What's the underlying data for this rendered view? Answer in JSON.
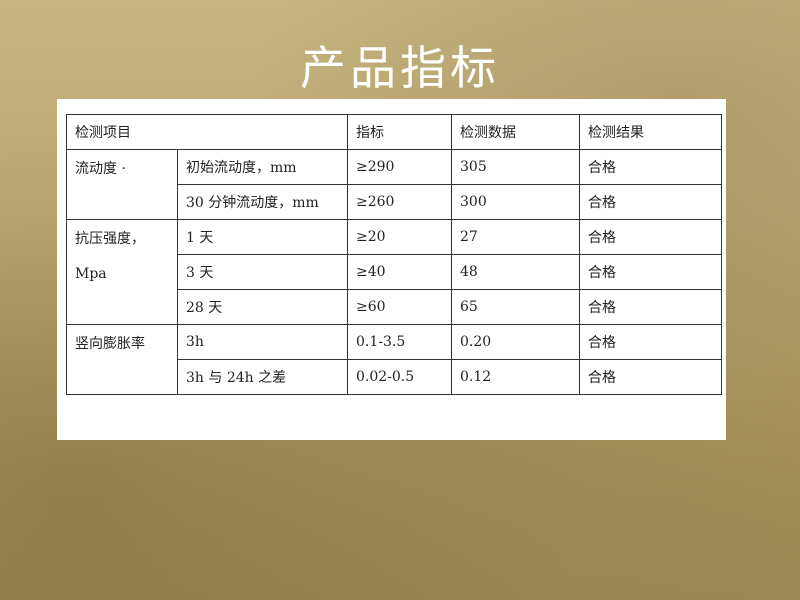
{
  "title": "产品指标",
  "table": {
    "headers": [
      "检测项目",
      "指标",
      "检测数据",
      "检测结果"
    ],
    "groups": [
      {
        "label": "流动度 ·",
        "rows": [
          {
            "item": "初始流动度，mm",
            "spec": "≥290",
            "value": "305",
            "result": "合格"
          },
          {
            "item": "30 分钟流动度，mm",
            "spec": "≥260",
            "value": "300",
            "result": "合格"
          }
        ]
      },
      {
        "label": "抗压强度，",
        "label2": "Mpa",
        "rows": [
          {
            "item": "1 天",
            "spec": "≥20",
            "value": "27",
            "result": "合格"
          },
          {
            "item": "3 天",
            "spec": "≥40",
            "value": "48",
            "result": "合格"
          },
          {
            "item": "28 天",
            "spec": "≥60",
            "value": "65",
            "result": "合格"
          }
        ]
      },
      {
        "label": "竖向膨胀率",
        "rows": [
          {
            "item": "3h",
            "spec": "0.1-3.5",
            "value": "0.20",
            "result": "合格"
          },
          {
            "item": "3h 与 24h 之差",
            "spec": "0.02-0.5",
            "value": "0.12",
            "result": "合格"
          }
        ]
      }
    ]
  }
}
